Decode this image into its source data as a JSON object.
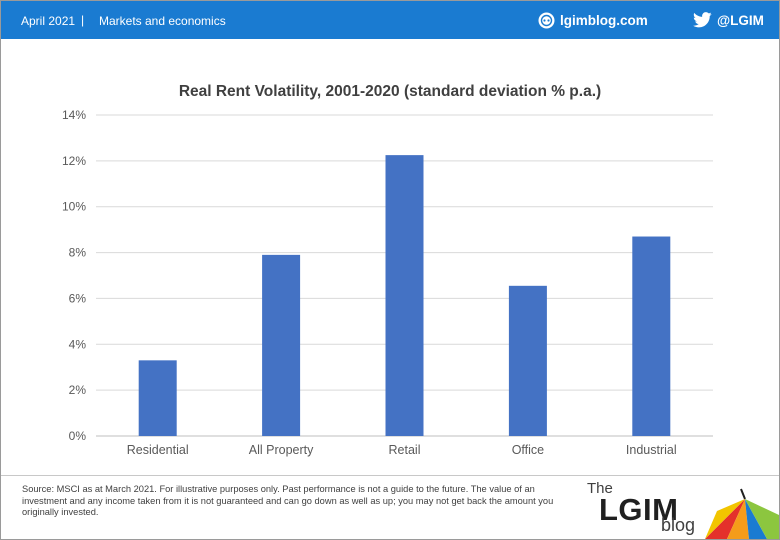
{
  "header": {
    "date": "April 2021",
    "separator": "|",
    "section": "Markets and economics",
    "site": "lgimblog.com",
    "site_icon": "globe-icon",
    "twitter_handle": "@LGIM",
    "twitter_icon": "twitter-bird-icon",
    "bar_color": "#1a7bd1"
  },
  "chart_data": {
    "type": "bar",
    "title": "Real Rent Volatility,  2001-2020 (standard deviation % p.a.)",
    "xlabel": "",
    "ylabel": "",
    "categories": [
      "Residential",
      "All Property",
      "Retail",
      "Office",
      "Industrial"
    ],
    "values": [
      3.3,
      7.9,
      12.25,
      6.55,
      8.7
    ],
    "ylim": [
      0,
      14
    ],
    "yticks": [
      0,
      2,
      4,
      6,
      8,
      10,
      12,
      14
    ],
    "ytick_labels": [
      "0%",
      "2%",
      "4%",
      "6%",
      "8%",
      "10%",
      "12%",
      "14%"
    ],
    "bar_color": "#4472c4",
    "grid": true,
    "legend": "none"
  },
  "footer": {
    "source": "Source: MSCI as at March 2021. For illustrative purposes only. Past performance is not a guide to the future. The value of an investment and any income taken from it is not guaranteed and can go down as well as up; you may not get back the amount you originally invested.",
    "logo_the": "The",
    "logo_lgim": "LGIM",
    "logo_blog": "blog"
  }
}
